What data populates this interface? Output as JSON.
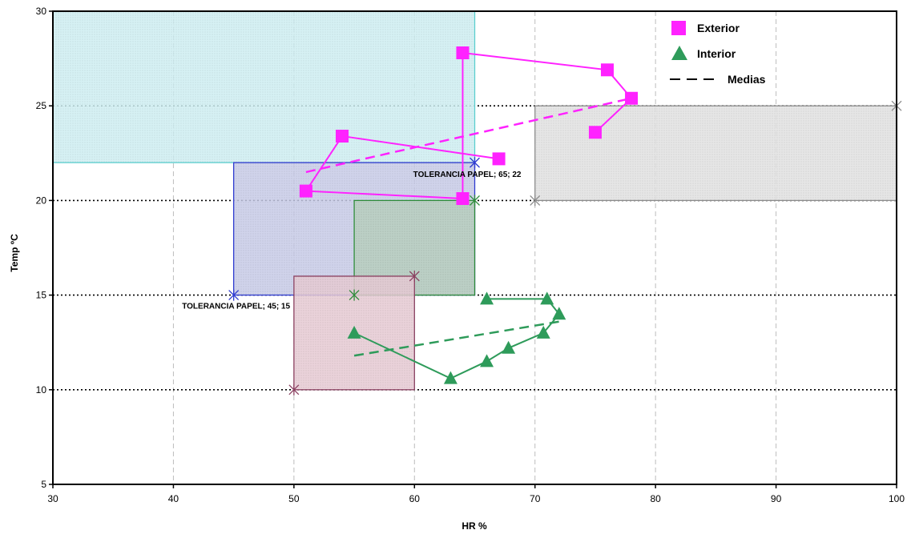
{
  "chart_data": {
    "type": "scatter",
    "xlabel": "HR %",
    "ylabel": "Temp ºC",
    "xlim": [
      30,
      100
    ],
    "ylim": [
      5,
      30
    ],
    "xticks": [
      30,
      40,
      50,
      60,
      70,
      80,
      90,
      100
    ],
    "yticks": [
      5,
      10,
      15,
      20,
      25,
      30
    ],
    "legend_position": "top-right",
    "regions": [
      {
        "name": "cyan-zone",
        "x": [
          30,
          65
        ],
        "y": [
          22,
          30
        ],
        "fill": "#cfeff2",
        "stroke": "#5ccfcf"
      },
      {
        "name": "grey-zone",
        "x": [
          70,
          100
        ],
        "y": [
          20,
          25
        ],
        "fill": "#e2e2e2",
        "stroke": "#8c8c8c"
      },
      {
        "name": "blue-zone",
        "x": [
          45,
          65
        ],
        "y": [
          15,
          22
        ],
        "fill": "#c8cbe8",
        "stroke": "#2f3bd0"
      },
      {
        "name": "green-zone",
        "x": [
          55,
          65
        ],
        "y": [
          15,
          20
        ],
        "fill": "#b8cfc0",
        "stroke": "#2e8b3a"
      },
      {
        "name": "maroon-zone",
        "x": [
          50,
          60
        ],
        "y": [
          10,
          16
        ],
        "fill": "#e6cad4",
        "stroke": "#8a4060"
      }
    ],
    "region_markers": [
      {
        "x": 45,
        "y": 15,
        "color": "#2f3bd0"
      },
      {
        "x": 65,
        "y": 22,
        "color": "#2f3bd0"
      },
      {
        "x": 55,
        "y": 15,
        "color": "#2e8b3a"
      },
      {
        "x": 65,
        "y": 20,
        "color": "#2e8b3a"
      },
      {
        "x": 50,
        "y": 10,
        "color": "#8a4060"
      },
      {
        "x": 60,
        "y": 16,
        "color": "#8a4060"
      },
      {
        "x": 70,
        "y": 20,
        "color": "#8c8c8c"
      },
      {
        "x": 100,
        "y": 25,
        "color": "#8c8c8c"
      }
    ],
    "annotations": [
      {
        "text": "TOLERANCIA PAPEL; 65; 22",
        "x": 65,
        "y": 22,
        "anchor": "end"
      },
      {
        "text": "TOLERANCIA PAPEL; 45; 15",
        "x": 45,
        "y": 15,
        "anchor": "middle"
      }
    ],
    "series": [
      {
        "name": "Exterior",
        "marker": "square",
        "color": "#ff22ff",
        "points": [
          [
            67,
            22.2
          ],
          [
            54,
            23.4
          ],
          [
            51,
            20.5
          ],
          [
            64,
            20.1
          ],
          [
            64,
            27.8
          ],
          [
            76,
            26.9
          ],
          [
            78,
            25.4
          ],
          [
            75,
            23.6
          ]
        ]
      },
      {
        "name": "Interior",
        "marker": "triangle",
        "color": "#2e9b5a",
        "points": [
          [
            66,
            14.8
          ],
          [
            71,
            14.8
          ],
          [
            72,
            14
          ],
          [
            70.7,
            13
          ],
          [
            67.8,
            12.2
          ],
          [
            66,
            11.5
          ],
          [
            63,
            10.6
          ],
          [
            55,
            13
          ]
        ]
      },
      {
        "name": "Medias",
        "dashed_lines": [
          {
            "color": "#ff22ff",
            "points": [
              [
                51,
                21.5
              ],
              [
                78,
                25.4
              ]
            ]
          },
          {
            "color": "#2e9b5a",
            "points": [
              [
                55,
                11.8
              ],
              [
                72,
                13.6
              ]
            ]
          }
        ]
      }
    ]
  }
}
